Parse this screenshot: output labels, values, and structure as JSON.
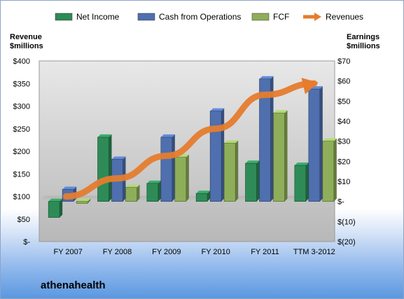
{
  "company_name": "athenahealth",
  "chart_data": {
    "type": "bar",
    "categories": [
      "FY 2007",
      "FY 2008",
      "FY 2009",
      "FY 2010",
      "FY 2011",
      "TTM 3-2012"
    ],
    "series": [
      {
        "name": "Net Income",
        "axis": "right",
        "kind": "bar",
        "color": "#2e8b57",
        "values": [
          -8,
          32,
          9,
          4,
          19,
          18
        ]
      },
      {
        "name": "Cash from Operations",
        "axis": "right",
        "kind": "bar",
        "color": "#4f6fae",
        "values": [
          6,
          21,
          32,
          45,
          61,
          56
        ]
      },
      {
        "name": "FCF",
        "axis": "right",
        "kind": "bar",
        "color": "#8fae5a",
        "values": [
          -1,
          7,
          22,
          29,
          44,
          30
        ]
      },
      {
        "name": "Revenues",
        "axis": "left",
        "kind": "line-arrow",
        "color": "#e57c2e",
        "values": [
          100,
          140,
          190,
          250,
          325,
          350
        ]
      }
    ],
    "left_axis": {
      "title": [
        "Revenue",
        "$millions"
      ],
      "ylim": [
        0,
        400
      ],
      "ticks": [
        "$-",
        "$50",
        "$100",
        "$150",
        "$200",
        "$250",
        "$300",
        "$350",
        "$400"
      ]
    },
    "right_axis": {
      "title": [
        "Earnings",
        "$millions"
      ],
      "ylim": [
        -20,
        70
      ],
      "ticks": [
        "$(20)",
        "$(10)",
        "$-",
        "$10",
        "$20",
        "$30",
        "$40",
        "$50",
        "$60",
        "$70"
      ]
    },
    "legend_position": "top",
    "grid": false
  }
}
